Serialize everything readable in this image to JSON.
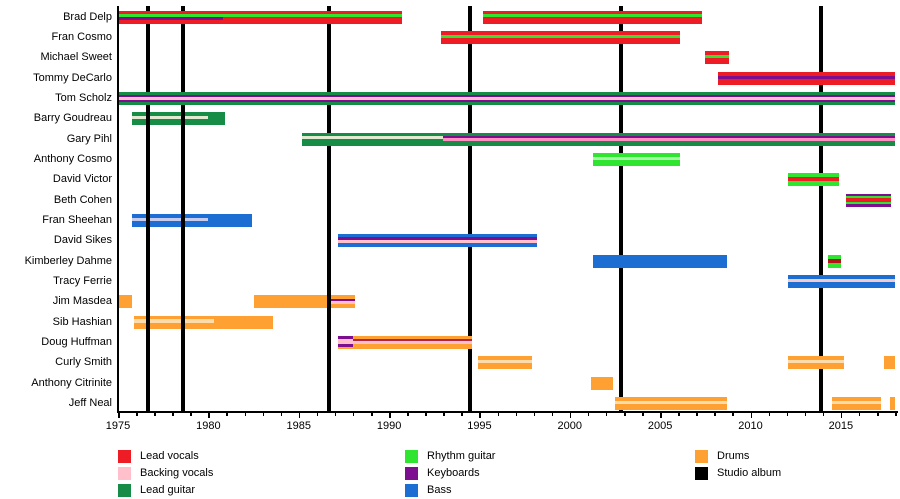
{
  "chart_data": {
    "type": "timeline",
    "title": "",
    "x_axis": {
      "range": [
        1975,
        2018
      ],
      "tick_years": [
        1975,
        1980,
        1985,
        1990,
        1995,
        2000,
        2005,
        2010,
        2015
      ],
      "minor_tick_every": 1
    },
    "palette": {
      "lead_vocals": "#ee1c24",
      "backing_vocals": "#ffc0cb",
      "lead_guitar": "#178c46",
      "rhythm_guitar": "#2fe52f",
      "keyboards": "#7c0e8f",
      "bass": "#1c6ed2",
      "drums": "#ffa132",
      "studio_album": "#000000",
      "bv_on_green": "#e3e8d0",
      "bv_on_blue": "#c7cbed",
      "bv_on_peach": "#f4cbc6",
      "bv_on_orange": "#fddcab",
      "bv_on_bright_green": "#a5f6a5",
      "bright_pink": "#ff8fc0",
      "dark_red": "#b51319",
      "maroon_line": "#b02545"
    },
    "legend": {
      "columns": [
        [
          {
            "label": "Lead vocals",
            "color": "lead_vocals"
          },
          {
            "label": "Backing vocals",
            "color": "backing_vocals"
          },
          {
            "label": "Lead guitar",
            "color": "lead_guitar"
          }
        ],
        [
          {
            "label": "Rhythm guitar",
            "color": "rhythm_guitar"
          },
          {
            "label": "Keyboards",
            "color": "keyboards"
          },
          {
            "label": "Bass",
            "color": "bass"
          }
        ],
        [
          {
            "label": "Drums",
            "color": "drums"
          },
          {
            "label": "Studio album",
            "color": "studio_album"
          }
        ]
      ]
    },
    "studio_albums": {
      "legend_label": "Studio album",
      "years": [
        1976.65,
        1978.6,
        1986.7,
        1994.5,
        2002.85,
        2013.9
      ]
    },
    "members": [
      {
        "name": "Brad Delp",
        "segments": [
          {
            "start": 1975.0,
            "end": 1980.8,
            "stripes": [
              [
                "lead_vocals",
                3.5
              ],
              [
                "rhythm_guitar",
                2.5
              ],
              [
                "keyboards",
                2.5
              ],
              [
                "lead_vocals",
                3.5
              ]
            ]
          },
          {
            "start": 1980.8,
            "end": 1990.7,
            "stripes": [
              [
                "lead_vocals",
                3.5
              ],
              [
                "rhythm_guitar",
                2.5
              ],
              [
                "lead_vocals",
                6
              ]
            ]
          },
          {
            "start": 1995.2,
            "end": 2007.3,
            "stripes": [
              [
                "lead_vocals",
                3.5
              ],
              [
                "rhythm_guitar",
                2.5
              ],
              [
                "lead_vocals",
                6
              ]
            ]
          }
        ]
      },
      {
        "name": "Fran Cosmo",
        "segments": [
          {
            "start": 1992.9,
            "end": 2006.1,
            "stripes": [
              [
                "lead_vocals",
                4
              ],
              [
                "rhythm_guitar",
                2.5
              ],
              [
                "lead_vocals",
                5.5
              ]
            ]
          }
        ]
      },
      {
        "name": "Michael Sweet",
        "segments": [
          {
            "start": 2007.5,
            "end": 2008.8,
            "stripes": [
              [
                "lead_vocals",
                3.5
              ],
              [
                "rhythm_guitar",
                3
              ],
              [
                "lead_vocals",
                5.5
              ]
            ]
          }
        ]
      },
      {
        "name": "Tommy DeCarlo",
        "segments": [
          {
            "start": 2008.2,
            "end": 2018.0,
            "stripes": [
              [
                "lead_vocals",
                4
              ],
              [
                "keyboards",
                3
              ],
              [
                "lead_vocals",
                5
              ]
            ]
          }
        ]
      },
      {
        "name": "Tom Scholz",
        "segments": [
          {
            "start": 1975.0,
            "end": 2018.0,
            "stripes": [
              [
                "lead_guitar",
                3
              ],
              [
                "keyboards",
                1.8
              ],
              [
                "backing_vocals",
                2.8
              ],
              [
                "keyboards",
                1.8
              ],
              [
                "lead_guitar",
                3
              ]
            ]
          }
        ]
      },
      {
        "name": "Barry Goudreau",
        "under_albums": true,
        "segments": [
          {
            "start": 1975.8,
            "end": 1980.0,
            "stripes": [
              [
                "lead_guitar",
                3.5
              ],
              [
                "bv_on_green",
                3
              ],
              [
                "lead_guitar",
                5.5
              ]
            ]
          },
          {
            "start": 1980.0,
            "end": 1980.9,
            "stripes": [
              [
                "lead_guitar",
                1
              ]
            ]
          }
        ]
      },
      {
        "name": "Gary Pihl",
        "segments": [
          {
            "start": 1985.2,
            "end": 1993.0,
            "stripes": [
              [
                "lead_guitar",
                3.5
              ],
              [
                "bv_on_green",
                2.8
              ],
              [
                "lead_guitar",
                5.7
              ]
            ]
          },
          {
            "start": 1993.0,
            "end": 2018.0,
            "stripes": [
              [
                "lead_guitar",
                3
              ],
              [
                "keyboards",
                2.5
              ],
              [
                "bright_pink",
                2.5
              ],
              [
                "lead_guitar",
                4
              ]
            ]
          }
        ]
      },
      {
        "name": "Anthony Cosmo",
        "segments": [
          {
            "start": 2001.3,
            "end": 2006.1,
            "stripes": [
              [
                "rhythm_guitar",
                3.5
              ],
              [
                "bv_on_bright_green",
                3
              ],
              [
                "rhythm_guitar",
                5.5
              ]
            ]
          }
        ]
      },
      {
        "name": "David Victor",
        "segments": [
          {
            "start": 2012.1,
            "end": 2014.9,
            "stripes": [
              [
                "rhythm_guitar",
                3.5
              ],
              [
                "lead_vocals",
                3.5
              ],
              [
                "rhythm_guitar",
                5
              ]
            ]
          }
        ]
      },
      {
        "name": "Beth Cohen",
        "segments": [
          {
            "start": 2015.3,
            "end": 2017.8,
            "stripes": [
              [
                "keyboards",
                2.6
              ],
              [
                "rhythm_guitar",
                2
              ],
              [
                "lead_vocals",
                3
              ],
              [
                "rhythm_guitar",
                2
              ],
              [
                "keyboards",
                2.6
              ]
            ]
          }
        ]
      },
      {
        "name": "Fran Sheehan",
        "under_albums": true,
        "segments": [
          {
            "start": 1975.8,
            "end": 1980.0,
            "stripes": [
              [
                "bass",
                3.5
              ],
              [
                "bv_on_blue",
                3
              ],
              [
                "bass",
                5.5
              ]
            ]
          },
          {
            "start": 1980.0,
            "end": 1982.4,
            "stripes": [
              [
                "bass",
                1
              ]
            ]
          }
        ]
      },
      {
        "name": "David Sikes",
        "segments": [
          {
            "start": 1987.2,
            "end": 1998.2,
            "stripes": [
              [
                "bass",
                2.6
              ],
              [
                "keyboards",
                2.6
              ],
              [
                "backing_vocals",
                2.6
              ],
              [
                "bass",
                4.2
              ]
            ]
          }
        ]
      },
      {
        "name": "Kimberley Dahme",
        "segments": [
          {
            "start": 2001.3,
            "end": 2008.7,
            "stripes": [
              [
                "bass",
                1
              ]
            ]
          },
          {
            "start": 2014.3,
            "end": 2015.0,
            "stripes": [
              [
                "rhythm_guitar",
                4
              ],
              [
                "dark_red",
                3.5
              ],
              [
                "rhythm_guitar",
                4.5
              ]
            ]
          }
        ]
      },
      {
        "name": "Tracy Ferrie",
        "segments": [
          {
            "start": 2012.1,
            "end": 2018.0,
            "stripes": [
              [
                "bass",
                3.5
              ],
              [
                "bv_on_peach",
                3
              ],
              [
                "bass",
                5.5
              ]
            ]
          }
        ]
      },
      {
        "name": "Jim Masdea",
        "under_albums": true,
        "segments": [
          {
            "start": 1975.0,
            "end": 1975.8,
            "stripes": [
              [
                "drums",
                1
              ]
            ]
          },
          {
            "start": 1982.5,
            "end": 1986.7,
            "stripes": [
              [
                "drums",
                1
              ]
            ]
          },
          {
            "start": 1986.7,
            "end": 1988.1,
            "stripes": [
              [
                "drums",
                3
              ],
              [
                "keyboards",
                2.2
              ],
              [
                "backing_vocals",
                2.6
              ],
              [
                "drums",
                4.2
              ]
            ]
          }
        ]
      },
      {
        "name": "Sib Hashian",
        "under_albums": true,
        "segments": [
          {
            "start": 1975.9,
            "end": 1980.3,
            "stripes": [
              [
                "drums",
                3.5
              ],
              [
                "bv_on_orange",
                3
              ],
              [
                "drums",
                5.5
              ]
            ]
          },
          {
            "start": 1980.3,
            "end": 1983.6,
            "stripes": [
              [
                "drums",
                1
              ]
            ]
          }
        ]
      },
      {
        "name": "Doug Huffman",
        "segments": [
          {
            "start": 1987.2,
            "end": 1988.0,
            "stripes": [
              [
                "keyboards",
                3
              ],
              [
                "backing_vocals",
                4
              ],
              [
                "keyboards",
                3
              ],
              [
                "drums",
                2
              ]
            ]
          },
          {
            "start": 1988.0,
            "end": 1994.6,
            "stripes": [
              [
                "drums",
                3
              ],
              [
                "maroon_line",
                1.5
              ],
              [
                "backing_vocals",
                3
              ],
              [
                "drums",
                4.5
              ]
            ]
          }
        ]
      },
      {
        "name": "Curly Smith",
        "segments": [
          {
            "start": 1994.9,
            "end": 1997.9,
            "stripes": [
              [
                "drums",
                3.5
              ],
              [
                "bv_on_orange",
                3
              ],
              [
                "drums",
                5.5
              ]
            ]
          },
          {
            "start": 2012.1,
            "end": 2015.2,
            "stripes": [
              [
                "drums",
                3.5
              ],
              [
                "bv_on_orange",
                3
              ],
              [
                "drums",
                5.5
              ]
            ]
          },
          {
            "start": 2017.4,
            "end": 2018.0,
            "stripes": [
              [
                "drums",
                1
              ]
            ]
          }
        ]
      },
      {
        "name": "Anthony Citrinite",
        "segments": [
          {
            "start": 2001.2,
            "end": 2002.4,
            "stripes": [
              [
                "drums",
                1
              ]
            ]
          }
        ]
      },
      {
        "name": "Jeff Neal",
        "segments": [
          {
            "start": 2002.5,
            "end": 2008.7,
            "stripes": [
              [
                "drums",
                3.5
              ],
              [
                "bv_on_orange",
                3
              ],
              [
                "drums",
                5.5
              ]
            ]
          },
          {
            "start": 2014.5,
            "end": 2017.2,
            "stripes": [
              [
                "drums",
                3.5
              ],
              [
                "bv_on_orange",
                3
              ],
              [
                "drums",
                5.5
              ]
            ]
          },
          {
            "start": 2017.7,
            "end": 2018.0,
            "stripes": [
              [
                "drums",
                1
              ]
            ]
          }
        ]
      }
    ]
  }
}
